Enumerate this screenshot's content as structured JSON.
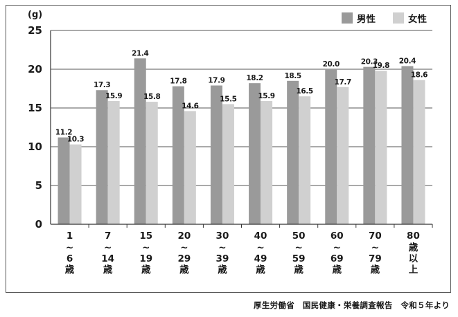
{
  "chart_data": {
    "type": "bar",
    "unit_label": "(g)",
    "categories": [
      [
        "1",
        "~",
        "6",
        "歳"
      ],
      [
        "7",
        "~",
        "14",
        "歳"
      ],
      [
        "15",
        "~",
        "19",
        "歳"
      ],
      [
        "20",
        "~",
        "29",
        "歳"
      ],
      [
        "30",
        "~",
        "39",
        "歳"
      ],
      [
        "40",
        "~",
        "49",
        "歳"
      ],
      [
        "50",
        "~",
        "59",
        "歳"
      ],
      [
        "60",
        "~",
        "69",
        "歳"
      ],
      [
        "70",
        "~",
        "79",
        "歳"
      ],
      [
        "80",
        "歳",
        "以",
        "上"
      ]
    ],
    "series": [
      {
        "name": "男性",
        "color": "#9a9a9a",
        "values": [
          11.2,
          17.3,
          21.4,
          17.8,
          17.9,
          18.2,
          18.5,
          20.0,
          20.3,
          20.4
        ],
        "labels": [
          "11.2",
          "17.3",
          "21.4",
          "17.8",
          "17.9",
          "18.2",
          "18.5",
          "20.0",
          "20.3",
          "20.4"
        ]
      },
      {
        "name": "女性",
        "color": "#d0d0d0",
        "values": [
          10.3,
          15.9,
          15.8,
          14.6,
          15.5,
          15.9,
          16.5,
          17.7,
          19.8,
          18.6
        ],
        "labels": [
          "10.3",
          "15.9",
          "15.8",
          "14.6",
          "15.5",
          "15.9",
          "16.5",
          "17.7",
          "19.8",
          "18.6"
        ]
      }
    ],
    "ylim": [
      0,
      25
    ],
    "yticks": [
      "0",
      "5",
      "10",
      "15",
      "20",
      "25"
    ],
    "ytick_values": [
      0,
      5,
      10,
      15,
      20,
      25
    ],
    "grid": true,
    "legend_position": "top-right"
  },
  "source_text": "厚生労働省　国民健康・栄養調査報告　令和５年より"
}
